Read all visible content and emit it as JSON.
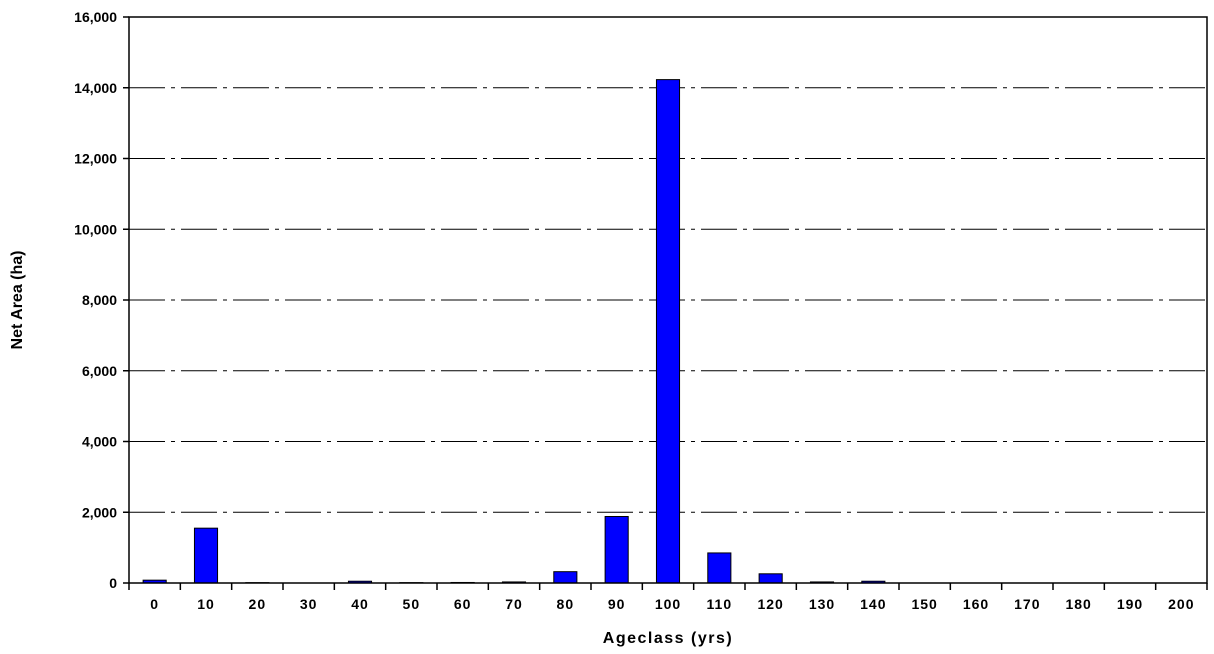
{
  "chart_data": {
    "type": "bar",
    "title": "",
    "xlabel": "Ageclass (yrs)",
    "ylabel": "Net Area (ha)",
    "categories": [
      "0",
      "10",
      "20",
      "30",
      "40",
      "50",
      "60",
      "70",
      "80",
      "90",
      "100",
      "110",
      "120",
      "130",
      "140",
      "150",
      "160",
      "170",
      "180",
      "190",
      "200"
    ],
    "values": [
      80,
      1550,
      10,
      0,
      50,
      10,
      15,
      30,
      320,
      1880,
      14230,
      850,
      260,
      30,
      50,
      0,
      0,
      0,
      0,
      0,
      0
    ],
    "ylim": [
      0,
      16000
    ],
    "yticks": [
      0,
      2000,
      4000,
      6000,
      8000,
      10000,
      12000,
      14000,
      16000
    ],
    "ytick_labels": [
      "0",
      "2,000",
      "4,000",
      "6,000",
      "8,000",
      "10,000",
      "12,000",
      "14,000",
      "16,000"
    ],
    "grid": "horizontal dash-dot",
    "legend": "none",
    "bar_color": "#0000ff",
    "bar_edge_color": "#000000"
  }
}
